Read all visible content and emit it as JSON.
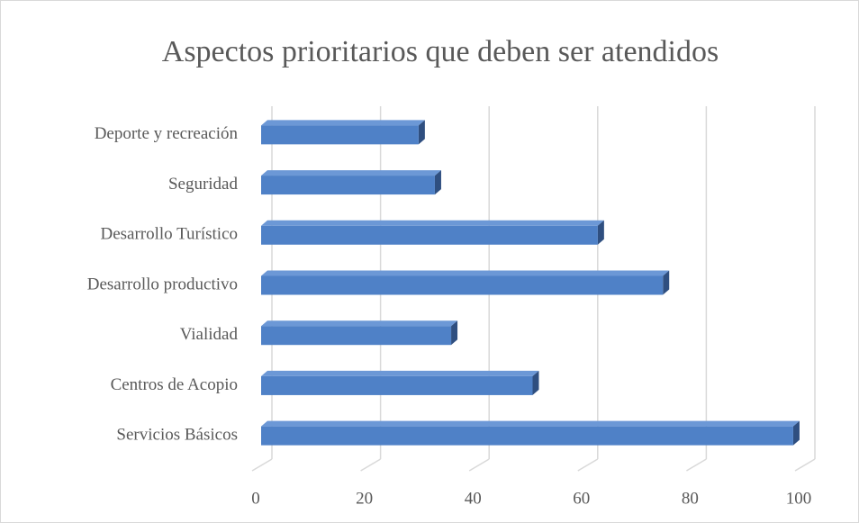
{
  "chart_data": {
    "type": "bar3d_horizontal",
    "title": "Aspectos prioritarios que deben ser atendidos",
    "categories": [
      "Servicios Básicos",
      "Centros de Acopio",
      "Vialidad",
      "Desarrollo productivo",
      "Desarrollo Turístico",
      "Seguridad",
      "Deporte y recreación"
    ],
    "values": [
      98,
      50,
      35,
      74,
      62,
      32,
      29
    ],
    "color": "#4f81c7",
    "xlim": [
      0,
      100
    ],
    "xticks": [
      0,
      20,
      40,
      60,
      80,
      100
    ],
    "grid": true
  }
}
